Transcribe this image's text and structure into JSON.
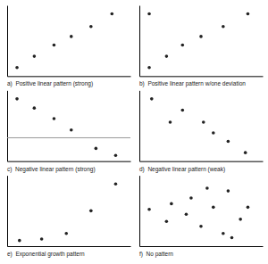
{
  "chart_data": [
    {
      "type": "scatter",
      "x_label": "a)  Positive linear pattern (strong)",
      "x": [
        0.08,
        0.22,
        0.38,
        0.52,
        0.68,
        0.85
      ],
      "values": [
        0.12,
        0.28,
        0.44,
        0.56,
        0.7,
        0.88
      ],
      "color": "#222222",
      "xlim": [
        0,
        1
      ],
      "ylim": [
        0,
        1
      ],
      "xticks": [],
      "yticks": [],
      "tick_labels": false
    },
    {
      "type": "scatter",
      "x_label": "b)  Positive linear pattern w/one deviation",
      "x": [
        0.08,
        0.22,
        0.35,
        0.5,
        0.68,
        0.88,
        0.08
      ],
      "values": [
        0.12,
        0.28,
        0.44,
        0.56,
        0.7,
        0.88,
        0.88
      ],
      "color": "#222222",
      "xlim": [
        0,
        1
      ],
      "ylim": [
        0,
        1
      ],
      "xticks": [],
      "yticks": [],
      "tick_labels": false
    },
    {
      "type": "scatter",
      "x_label": "c)  Negative linear pattern (strong)",
      "x": [
        0.08,
        0.22,
        0.38,
        0.52,
        0.72,
        0.88
      ],
      "values": [
        0.88,
        0.75,
        0.6,
        0.44,
        0.18,
        0.08
      ],
      "hline_y": 0.33,
      "color": "#222222",
      "xlim": [
        0,
        1
      ],
      "ylim": [
        0,
        1
      ],
      "xticks": [],
      "yticks": [],
      "tick_labels": false
    },
    {
      "type": "scatter",
      "x_label": "d)  Negative linear pattern (weak)",
      "x": [
        0.1,
        0.35,
        0.52,
        0.6,
        0.72,
        0.86,
        0.25
      ],
      "values": [
        0.88,
        0.72,
        0.55,
        0.4,
        0.28,
        0.12,
        0.55
      ],
      "color": "#222222",
      "xlim": [
        0,
        1
      ],
      "ylim": [
        0,
        1
      ],
      "xticks": [],
      "yticks": [],
      "tick_labels": false
    },
    {
      "type": "scatter",
      "x_label": "e)  Exponential growth pattern",
      "x": [
        0.1,
        0.28,
        0.48,
        0.68,
        0.88
      ],
      "values": [
        0.08,
        0.1,
        0.18,
        0.5,
        0.88
      ],
      "color": "#222222",
      "xlim": [
        0,
        1
      ],
      "ylim": [
        0,
        1
      ],
      "xticks": [],
      "yticks": [],
      "tick_labels": false
    },
    {
      "type": "scatter",
      "x_label": "f)  No pattern",
      "x": [
        0.08,
        0.22,
        0.26,
        0.38,
        0.42,
        0.55,
        0.6,
        0.72,
        0.88,
        0.5,
        0.68,
        0.82,
        0.75
      ],
      "values": [
        0.52,
        0.35,
        0.6,
        0.45,
        0.68,
        0.82,
        0.55,
        0.78,
        0.55,
        0.28,
        0.18,
        0.38,
        0.12
      ],
      "color": "#222222",
      "xlim": [
        0,
        1
      ],
      "ylim": [
        0,
        1
      ],
      "xticks": [],
      "yticks": [],
      "tick_labels": false
    }
  ]
}
